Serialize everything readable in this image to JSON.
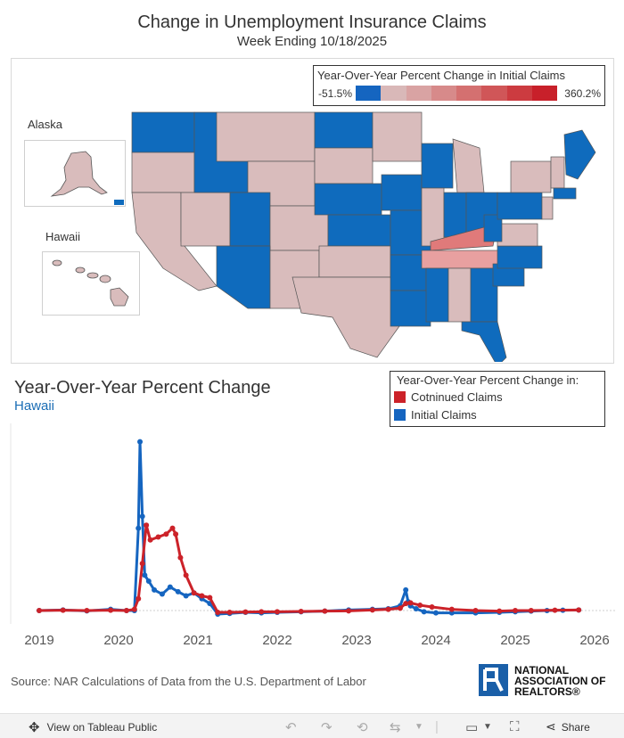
{
  "header": {
    "title": "Change in Unemployment Insurance Claims",
    "subtitle": "Week Ending 10/18/2025"
  },
  "map": {
    "legend_title": "Year-Over-Year Percent Change in Initial Claims",
    "scale_min": "-51.5%",
    "scale_max": "360.2%",
    "scale_colors": [
      "#1565c0",
      "#d9b8b8",
      "#d9a3a3",
      "#d78a8a",
      "#d47070",
      "#d05658",
      "#cc3b40",
      "#c8202a"
    ],
    "inset_labels": {
      "alaska": "Alaska",
      "hawaii": "Hawaii"
    },
    "colors": {
      "blue": "#0f6bbd",
      "pink": "#d9bcbc",
      "red_light": "#e07a7a",
      "red_mid": "#d9534f"
    }
  },
  "chart": {
    "title": "Year-Over-Year Percent Change",
    "subtitle": "Hawaii",
    "legend_title": "Year-Over-Year Percent Change in:",
    "legend_items": [
      {
        "label": "Cotninued Claims",
        "color": "#cc2229"
      },
      {
        "label": "Initial Claims",
        "color": "#1565c0"
      }
    ]
  },
  "chart_data": {
    "type": "line",
    "title": "Year-Over-Year Percent Change",
    "subtitle": "Hawaii",
    "xlabel": "",
    "ylabel": "",
    "x_ticks": [
      "2019",
      "2020",
      "2021",
      "2022",
      "2023",
      "2024",
      "2025",
      "2026"
    ],
    "xlim": [
      2019,
      2026
    ],
    "ylim": [
      -100,
      3000
    ],
    "gridlines": false,
    "legend_position": "top-right",
    "series": [
      {
        "name": "Initial Claims",
        "color": "#1565c0",
        "x": [
          2019.0,
          2019.3,
          2019.6,
          2019.9,
          2020.1,
          2020.2,
          2020.25,
          2020.27,
          2020.3,
          2020.33,
          2020.38,
          2020.45,
          2020.55,
          2020.65,
          2020.75,
          2020.85,
          2020.95,
          2021.05,
          2021.15,
          2021.25,
          2021.4,
          2021.6,
          2021.8,
          2022.0,
          2022.3,
          2022.6,
          2022.9,
          2023.2,
          2023.4,
          2023.55,
          2023.62,
          2023.65,
          2023.68,
          2023.75,
          2023.85,
          2024.0,
          2024.2,
          2024.5,
          2024.8,
          2025.0,
          2025.2,
          2025.4,
          2025.6,
          2025.8
        ],
        "y": [
          0,
          10,
          -5,
          20,
          0,
          0,
          1400,
          2870,
          1600,
          600,
          500,
          350,
          280,
          400,
          320,
          250,
          300,
          200,
          120,
          -60,
          -50,
          -30,
          -40,
          -30,
          -20,
          -10,
          10,
          20,
          30,
          80,
          350,
          150,
          80,
          30,
          -20,
          -40,
          -40,
          -40,
          -30,
          -20,
          -10,
          0,
          5,
          10
        ]
      },
      {
        "name": "Cotninued Claims",
        "color": "#cc2229",
        "x": [
          2019.0,
          2019.3,
          2019.6,
          2019.9,
          2020.1,
          2020.2,
          2020.25,
          2020.3,
          2020.35,
          2020.4,
          2020.5,
          2020.6,
          2020.68,
          2020.72,
          2020.78,
          2020.85,
          2020.95,
          2021.05,
          2021.15,
          2021.25,
          2021.4,
          2021.6,
          2021.8,
          2022.0,
          2022.3,
          2022.6,
          2022.9,
          2023.2,
          2023.4,
          2023.55,
          2023.62,
          2023.68,
          2023.8,
          2023.95,
          2024.2,
          2024.5,
          2024.8,
          2025.0,
          2025.2,
          2025.5,
          2025.8
        ],
        "y": [
          0,
          5,
          0,
          5,
          0,
          20,
          200,
          800,
          1450,
          1200,
          1250,
          1300,
          1400,
          1300,
          900,
          600,
          300,
          250,
          220,
          -30,
          -30,
          -25,
          -20,
          -20,
          -15,
          -10,
          -5,
          10,
          20,
          40,
          120,
          130,
          90,
          60,
          20,
          0,
          -10,
          0,
          0,
          5,
          10
        ]
      }
    ]
  },
  "footer": {
    "source": "Source: NAR Calculations of Data from the U.S. Department of Labor",
    "logo_line1": "NATIONAL",
    "logo_line2": "ASSOCIATION OF",
    "logo_line3": "REALTORS®",
    "view_label": "View on Tableau Public",
    "share_label": "Share"
  }
}
